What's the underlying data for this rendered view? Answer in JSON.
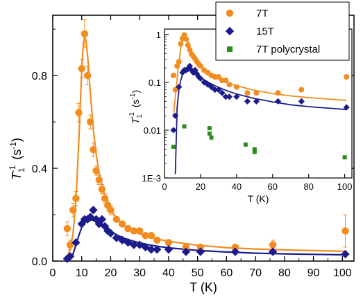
{
  "chart_data": [
    {
      "type": "scatter",
      "panel": "main",
      "xlabel": "T (K)",
      "ylabel_main": "T",
      "ylabel_sub": "1",
      "ylabel_sup": "-1",
      "ylabel_unit": "(s",
      "ylabel_unit_sup": "-1",
      "ylabel_unit_close": ")",
      "xlim": [
        0,
        104
      ],
      "ylim": [
        0,
        1.06
      ],
      "xticks": [
        0,
        10,
        20,
        30,
        40,
        50,
        60,
        70,
        80,
        90,
        100
      ],
      "xtick_labels": [
        "0",
        "10",
        "20",
        "30",
        "40",
        "50",
        "60",
        "70",
        "80",
        "90",
        "100"
      ],
      "yticks": [
        0.0,
        0.4,
        0.8
      ],
      "ytick_labels": [
        "0.0",
        "0.4",
        "0.8"
      ],
      "series": [
        {
          "name": "7T",
          "color": "#F28C1E",
          "marker": "circle",
          "x": [
            5,
            6,
            7,
            8,
            9,
            10,
            11,
            12,
            13,
            14,
            15,
            16,
            17,
            18,
            19,
            20,
            22,
            24,
            26,
            28,
            30,
            32,
            34,
            36,
            40,
            46,
            51,
            63,
            76,
            101
          ],
          "y": [
            0.14,
            0.07,
            0.22,
            0.27,
            0.64,
            0.83,
            0.98,
            0.8,
            0.6,
            0.48,
            0.39,
            0.35,
            0.31,
            0.27,
            0.24,
            0.22,
            0.18,
            0.16,
            0.14,
            0.13,
            0.13,
            0.11,
            0.11,
            0.09,
            0.08,
            0.06,
            0.06,
            0.06,
            0.07,
            0.13
          ],
          "yerr": [
            0.03,
            0.02,
            0.03,
            0.03,
            0.04,
            0.04,
            0.06,
            0.04,
            0.03,
            0.03,
            0.02,
            0.02,
            0.02,
            0.02,
            0.02,
            0.02,
            0.01,
            0.01,
            0.01,
            0.01,
            0.01,
            0.01,
            0.01,
            0.01,
            0.01,
            0.01,
            0.01,
            0.01,
            0.02,
            0.07
          ]
        },
        {
          "name": "15T",
          "color": "#1C1C8C",
          "marker": "diamond",
          "x": [
            5,
            6,
            8,
            10,
            11,
            12,
            13,
            14,
            15,
            16,
            17,
            18,
            19,
            20,
            22,
            24,
            26,
            28,
            30,
            32,
            34,
            36,
            40,
            46,
            51,
            63,
            76,
            101
          ],
          "y": [
            0.01,
            0.02,
            0.08,
            0.16,
            0.18,
            0.18,
            0.19,
            0.22,
            0.18,
            0.16,
            0.18,
            0.15,
            0.13,
            0.12,
            0.1,
            0.09,
            0.08,
            0.07,
            0.07,
            0.06,
            0.05,
            0.05,
            0.05,
            0.04,
            0.04,
            0.04,
            0.04,
            0.03
          ],
          "yerr": [
            0,
            0,
            0,
            0,
            0,
            0,
            0,
            0.01,
            0,
            0,
            0,
            0,
            0,
            0,
            0,
            0,
            0,
            0,
            0,
            0,
            0,
            0,
            0,
            0,
            0,
            0,
            0.005,
            0.008
          ]
        }
      ],
      "fits": [
        {
          "series": "7T",
          "color": "#F28C1E",
          "x": [
            5,
            6,
            7,
            8,
            9,
            10,
            10.5,
            11,
            11.5,
            12,
            13,
            14,
            15,
            16,
            18,
            20,
            22,
            25,
            28,
            32,
            36,
            40,
            50,
            60,
            70,
            80,
            90,
            101
          ],
          "y": [
            0.02,
            0.05,
            0.12,
            0.26,
            0.52,
            0.82,
            0.93,
            0.97,
            0.95,
            0.89,
            0.72,
            0.57,
            0.46,
            0.38,
            0.28,
            0.22,
            0.185,
            0.15,
            0.128,
            0.108,
            0.095,
            0.085,
            0.068,
            0.058,
            0.052,
            0.048,
            0.045,
            0.042
          ]
        },
        {
          "series": "15T",
          "color": "#1C1C8C",
          "x": [
            5,
            6,
            7,
            8,
            9,
            10,
            11,
            12,
            13,
            14,
            15,
            16,
            18,
            20,
            22,
            25,
            28,
            32,
            36,
            40,
            50,
            60,
            70,
            80,
            90,
            101
          ],
          "y": [
            0.0,
            0.01,
            0.03,
            0.07,
            0.11,
            0.145,
            0.165,
            0.175,
            0.178,
            0.176,
            0.17,
            0.162,
            0.145,
            0.128,
            0.113,
            0.097,
            0.085,
            0.073,
            0.064,
            0.057,
            0.046,
            0.039,
            0.034,
            0.031,
            0.029,
            0.027
          ]
        }
      ]
    },
    {
      "type": "scatter",
      "panel": "inset",
      "yscale": "log",
      "xlabel": "T (K)",
      "ylabel_main": "T",
      "ylabel_sub": "1",
      "ylabel_sup": "-1",
      "ylabel_unit": "(s",
      "ylabel_unit_sup": "-1",
      "ylabel_unit_close": ")",
      "xlim": [
        0,
        104
      ],
      "ylim": [
        0.001,
        1.3
      ],
      "xticks": [
        0,
        20,
        40,
        60,
        80,
        100
      ],
      "xtick_labels": [
        "0",
        "20",
        "40",
        "60",
        "80",
        "100"
      ],
      "yticks": [
        0.001,
        0.01,
        0.1,
        1
      ],
      "ytick_labels": [
        "1E-3",
        "0.01",
        "0.1",
        "1"
      ],
      "series": [
        {
          "name": "7T",
          "color": "#F28C1E",
          "marker": "circle",
          "x": [
            5,
            6,
            7,
            8,
            9,
            10,
            11,
            12,
            13,
            14,
            15,
            16,
            17,
            18,
            19,
            20,
            22,
            24,
            26,
            28,
            30,
            32,
            34,
            36,
            40,
            46,
            51,
            63,
            76,
            101
          ],
          "y": [
            0.14,
            0.07,
            0.22,
            0.27,
            0.64,
            0.83,
            0.98,
            0.8,
            0.6,
            0.48,
            0.39,
            0.35,
            0.31,
            0.27,
            0.24,
            0.22,
            0.18,
            0.16,
            0.14,
            0.13,
            0.13,
            0.11,
            0.11,
            0.09,
            0.08,
            0.06,
            0.06,
            0.06,
            0.07,
            0.13
          ]
        },
        {
          "name": "15T",
          "color": "#1C1C8C",
          "marker": "diamond",
          "x": [
            5,
            6,
            8,
            10,
            11,
            12,
            13,
            14,
            15,
            16,
            17,
            18,
            19,
            20,
            22,
            24,
            26,
            28,
            30,
            32,
            34,
            36,
            40,
            46,
            51,
            63,
            76,
            101
          ],
          "y": [
            0.01,
            0.02,
            0.08,
            0.16,
            0.18,
            0.18,
            0.19,
            0.22,
            0.18,
            0.16,
            0.18,
            0.15,
            0.13,
            0.12,
            0.1,
            0.09,
            0.08,
            0.07,
            0.07,
            0.06,
            0.05,
            0.05,
            0.05,
            0.04,
            0.04,
            0.04,
            0.04,
            0.03
          ]
        },
        {
          "name": "7T polycrystal",
          "color": "#2E8B1E",
          "marker": "square",
          "x": [
            5,
            11,
            25,
            25,
            26,
            45,
            50,
            50,
            100
          ],
          "y": [
            0.0045,
            0.012,
            0.011,
            0.0085,
            0.007,
            0.005,
            0.004,
            0.0035,
            0.0027
          ]
        }
      ],
      "fits": [
        {
          "series": "7T",
          "color": "#F28C1E",
          "x": [
            5,
            6,
            7,
            8,
            9,
            10,
            10.5,
            11,
            11.5,
            12,
            13,
            14,
            15,
            16,
            18,
            20,
            22,
            25,
            28,
            32,
            36,
            40,
            50,
            60,
            70,
            80,
            90,
            101
          ],
          "y": [
            0.02,
            0.05,
            0.12,
            0.26,
            0.52,
            0.82,
            0.93,
            0.97,
            0.95,
            0.89,
            0.72,
            0.57,
            0.46,
            0.38,
            0.28,
            0.22,
            0.185,
            0.15,
            0.128,
            0.108,
            0.095,
            0.085,
            0.068,
            0.058,
            0.052,
            0.048,
            0.045,
            0.042
          ]
        },
        {
          "series": "15T",
          "color": "#1C1C8C",
          "x": [
            6,
            7,
            8,
            9,
            10,
            11,
            12,
            13,
            14,
            15,
            16,
            18,
            20,
            22,
            25,
            28,
            32,
            36,
            40,
            50,
            60,
            70,
            80,
            90,
            101
          ],
          "y": [
            0.0012,
            0.03,
            0.07,
            0.11,
            0.145,
            0.165,
            0.175,
            0.178,
            0.176,
            0.17,
            0.162,
            0.145,
            0.128,
            0.113,
            0.097,
            0.085,
            0.073,
            0.064,
            0.057,
            0.046,
            0.039,
            0.034,
            0.031,
            0.029,
            0.027
          ]
        }
      ],
      "legend_placement": "top-right"
    }
  ]
}
